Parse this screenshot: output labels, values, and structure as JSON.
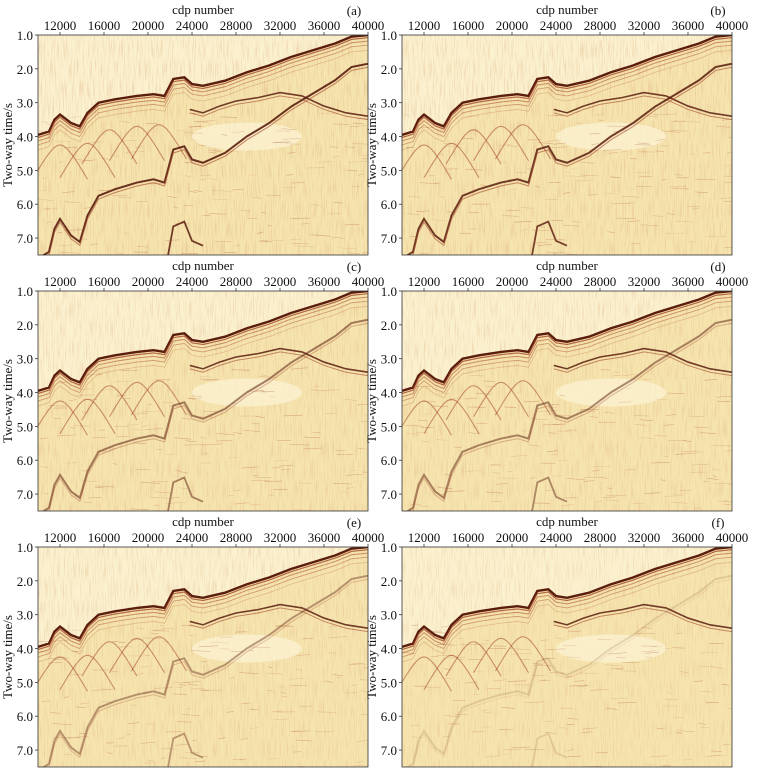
{
  "colors": {
    "background": "#f6e4ae",
    "light": "#fbf1cf",
    "reflector_dark": "#5a1d0e",
    "reflector_mid": "#a4472a",
    "noise": "#c88b55",
    "frame": "#333333"
  },
  "chart_data": [
    {
      "type": "heatmap",
      "panel_label": "(a)",
      "xlabel": "cdp number",
      "ylabel": "Two-way time/s",
      "x_ticks": [
        12000,
        16000,
        20000,
        24000,
        28000,
        32000,
        36000,
        40000
      ],
      "y_ticks": [
        "1.0",
        "2.0",
        "3.0",
        "4.0",
        "5.0",
        "6.0",
        "7.0"
      ],
      "xlim": [
        10000,
        40000
      ],
      "ylim": [
        1.0,
        7.5
      ],
      "multiple_strength": 1.0,
      "grid": false
    },
    {
      "type": "heatmap",
      "panel_label": "(b)",
      "xlabel": "cdp number",
      "ylabel": "Two-way time/s",
      "x_ticks": [
        12000,
        16000,
        20000,
        24000,
        28000,
        32000,
        36000,
        40000
      ],
      "y_ticks": [
        "1.0",
        "2.0",
        "3.0",
        "4.0",
        "5.0",
        "6.0",
        "7.0"
      ],
      "xlim": [
        10000,
        40000
      ],
      "ylim": [
        1.0,
        7.5
      ],
      "multiple_strength": 0.95,
      "grid": false
    },
    {
      "type": "heatmap",
      "panel_label": "(c)",
      "xlabel": "cdp number",
      "ylabel": "Two-way time/s",
      "x_ticks": [
        12000,
        16000,
        20000,
        24000,
        28000,
        32000,
        36000,
        40000
      ],
      "y_ticks": [
        "1.0",
        "2.0",
        "3.0",
        "4.0",
        "5.0",
        "6.0",
        "7.0"
      ],
      "xlim": [
        10000,
        40000
      ],
      "ylim": [
        1.0,
        7.5
      ],
      "multiple_strength": 0.6,
      "grid": false
    },
    {
      "type": "heatmap",
      "panel_label": "(d)",
      "xlabel": "cdp number",
      "ylabel": "Two-way time/s",
      "x_ticks": [
        12000,
        16000,
        20000,
        24000,
        28000,
        32000,
        36000,
        40000
      ],
      "y_ticks": [
        "1.0",
        "2.0",
        "3.0",
        "4.0",
        "5.0",
        "6.0",
        "7.0"
      ],
      "xlim": [
        10000,
        40000
      ],
      "ylim": [
        1.0,
        7.5
      ],
      "multiple_strength": 0.55,
      "grid": false
    },
    {
      "type": "heatmap",
      "panel_label": "(e)",
      "xlabel": "cdp number",
      "ylabel": "Two-way time/s",
      "x_ticks": [
        12000,
        16000,
        20000,
        24000,
        28000,
        32000,
        36000,
        40000
      ],
      "y_ticks": [
        "1.0",
        "2.0",
        "3.0",
        "4.0",
        "5.0",
        "6.0",
        "7.0"
      ],
      "xlim": [
        10000,
        40000
      ],
      "ylim": [
        1.0,
        7.5
      ],
      "multiple_strength": 0.45,
      "grid": false
    },
    {
      "type": "heatmap",
      "panel_label": "(f)",
      "xlabel": "cdp number",
      "ylabel": "Two-way time/s",
      "x_ticks": [
        12000,
        16000,
        20000,
        24000,
        28000,
        32000,
        36000,
        40000
      ],
      "y_ticks": [
        "1.0",
        "2.0",
        "3.0",
        "4.0",
        "5.0",
        "6.0",
        "7.0"
      ],
      "xlim": [
        10000,
        40000
      ],
      "ylim": [
        1.0,
        7.5
      ],
      "multiple_strength": 0.15,
      "grid": false
    }
  ]
}
